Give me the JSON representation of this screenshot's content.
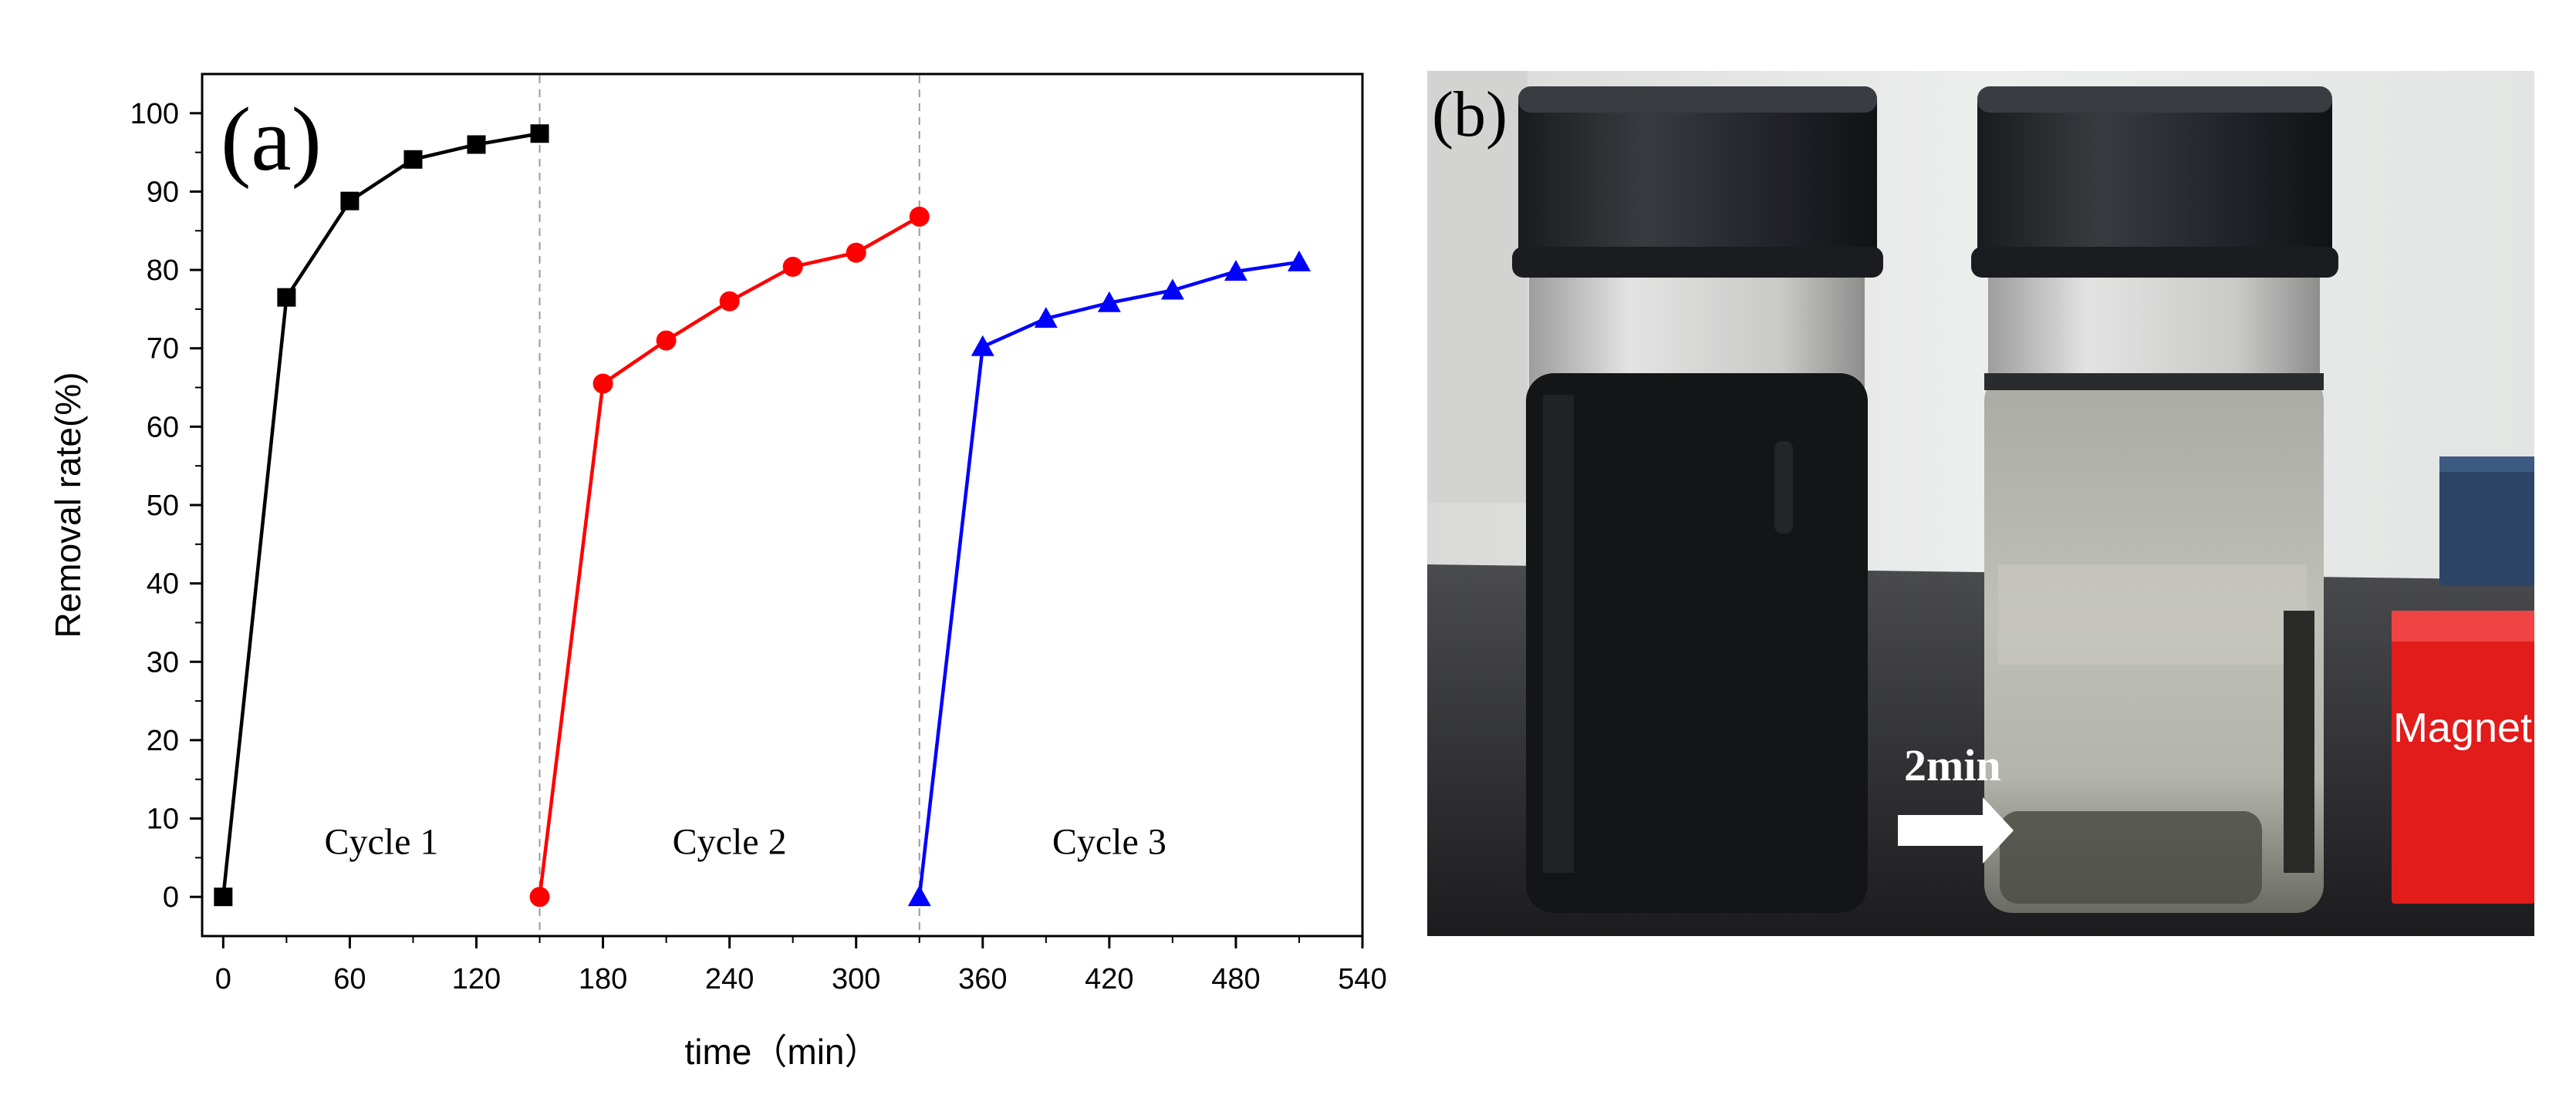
{
  "chart_data": {
    "type": "line",
    "panel_label": "(a)",
    "xlabel": "time（min）",
    "ylabel": "Removal rate(%)",
    "xlim": [
      -10,
      540
    ],
    "ylim": [
      -5,
      105
    ],
    "xticks": [
      0,
      60,
      120,
      180,
      240,
      300,
      360,
      420,
      480,
      540
    ],
    "yticks": [
      0,
      10,
      20,
      30,
      40,
      50,
      60,
      70,
      80,
      90,
      100
    ],
    "grid": false,
    "separators_x": [
      150,
      330
    ],
    "series": [
      {
        "color": "#000000",
        "marker": "square",
        "x": [
          0,
          30,
          60,
          90,
          120,
          150
        ],
        "y": [
          0,
          76.5,
          88.8,
          94.1,
          96.0,
          97.4
        ]
      },
      {
        "color": "#ff0000",
        "marker": "circle",
        "x": [
          150,
          180,
          210,
          240,
          270,
          300,
          330
        ],
        "y": [
          0,
          65.5,
          71.0,
          76.0,
          80.4,
          82.2,
          86.8
        ]
      },
      {
        "color": "#0000ff",
        "marker": "triangle",
        "x": [
          330,
          360,
          390,
          420,
          450,
          480,
          510
        ],
        "y": [
          0,
          70.2,
          73.8,
          75.8,
          77.4,
          79.8,
          81.0
        ]
      }
    ],
    "annotations": [
      {
        "text": "Cycle 1",
        "x": 75,
        "y": 5.5
      },
      {
        "text": "Cycle 2",
        "x": 240,
        "y": 5.5
      },
      {
        "text": "Cycle 3",
        "x": 420,
        "y": 5.5
      }
    ]
  },
  "photo": {
    "panel_label": "(b)",
    "arrow_label": "2min",
    "magnet_label": "Magnet",
    "colors": {
      "background": "#e6e7e6",
      "table": "#2c2c2f",
      "cap": "#26272b",
      "dispersed_liquid": "#141517",
      "separated_liquid": "#b8b9b1",
      "magnet_red": "#e21b1b",
      "magnet_blue": "#2c4566"
    }
  }
}
